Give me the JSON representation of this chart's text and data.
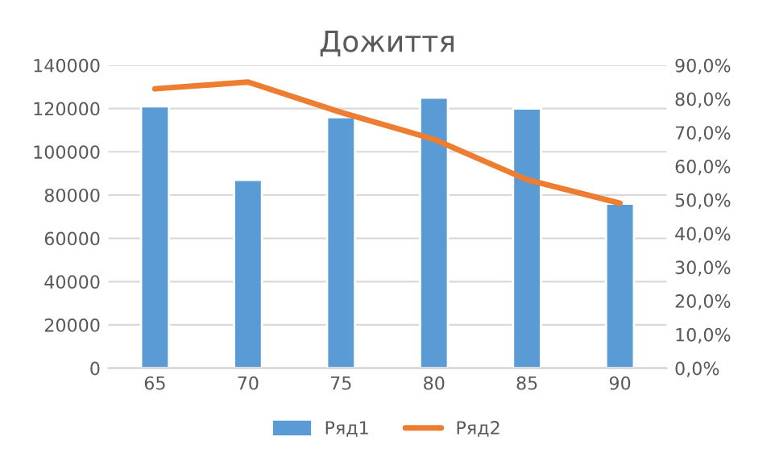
{
  "chart_data": {
    "type": "bar",
    "title": "Дожиття",
    "categories": [
      "65",
      "70",
      "75",
      "80",
      "85",
      "90"
    ],
    "series": [
      {
        "name": "Ряд1",
        "color": "#5b9bd5",
        "values": [
          121000,
          87000,
          116000,
          125000,
          120000,
          76000
        ]
      },
      {
        "name": "Ряд2",
        "type": "line",
        "axis": "y2",
        "color": "#ed7d31",
        "values": [
          83,
          85,
          76,
          68,
          56,
          49
        ]
      }
    ],
    "ylim": [
      0,
      140000
    ],
    "yticks": [
      0,
      20000,
      40000,
      60000,
      80000,
      100000,
      120000,
      140000
    ],
    "y2lim": [
      0,
      90
    ],
    "y2ticks": [
      {
        "value": 0,
        "label": "0,0%"
      },
      {
        "value": 10,
        "label": "10,0%"
      },
      {
        "value": 20,
        "label": "20,0%"
      },
      {
        "value": 30,
        "label": "30,0%"
      },
      {
        "value": 40,
        "label": "40,0%"
      },
      {
        "value": 50,
        "label": "50,0%"
      },
      {
        "value": 60,
        "label": "60,0%"
      },
      {
        "value": 70,
        "label": "70,0%"
      },
      {
        "value": 80,
        "label": "80,0%"
      },
      {
        "value": 90,
        "label": "90,0%"
      }
    ],
    "grid": "y",
    "legend": "bottom"
  }
}
